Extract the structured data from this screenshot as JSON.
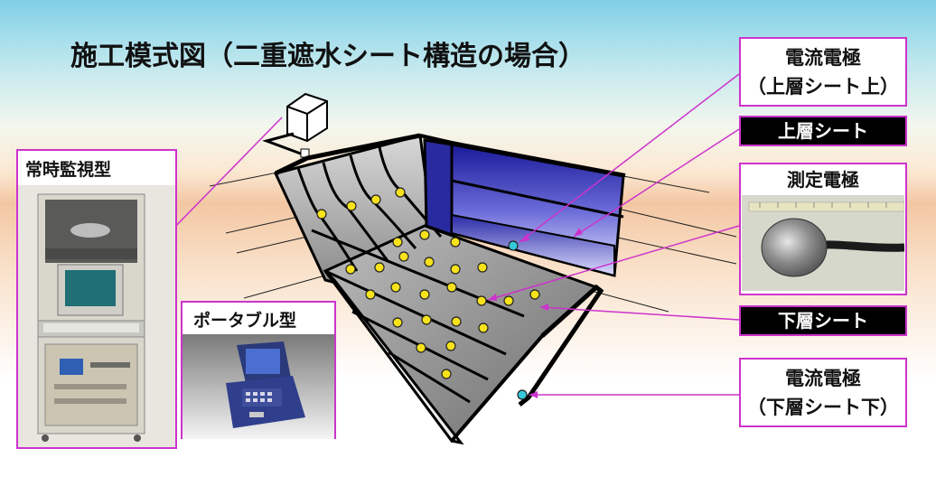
{
  "title": "施工模式図（二重遮水シート構造の場合）",
  "labels": {
    "current_electrode_upper": [
      "電流電極",
      "（上層シート上）"
    ],
    "upper_sheet": "上層シート",
    "measurement_electrode": "測定電極",
    "lower_sheet": "下層シート",
    "current_electrode_lower": [
      "電流電極",
      "（下層シート下）"
    ],
    "continuous_monitoring": "常時監視型",
    "portable": "ポータブル型"
  },
  "colors": {
    "leader_line": "#cc33cc",
    "electrode_dot": "#f7e21b",
    "current_electrode_dot": "#35c8d8",
    "upper_sheet_fill": "#3c3cbf",
    "lower_sheet_fill": "#8e8e8e"
  },
  "icons": [
    "monitoring-rack-photo",
    "portable-device-photo",
    "electrode-disk-photo",
    "junction-box-icon"
  ]
}
